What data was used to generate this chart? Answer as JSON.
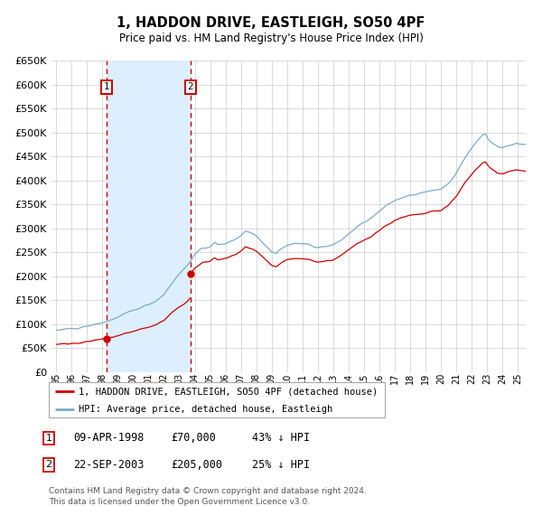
{
  "title": "1, HADDON DRIVE, EASTLEIGH, SO50 4PF",
  "subtitle": "Price paid vs. HM Land Registry's House Price Index (HPI)",
  "ylim": [
    0,
    650000
  ],
  "yticks": [
    0,
    50000,
    100000,
    150000,
    200000,
    250000,
    300000,
    350000,
    400000,
    450000,
    500000,
    550000,
    600000,
    650000
  ],
  "xlim_start": 1994.7,
  "xlim_end": 2025.5,
  "sale1_x": 1998.27,
  "sale1_y": 70000,
  "sale2_x": 2003.72,
  "sale2_y": 205000,
  "sale1_label": "09-APR-1998",
  "sale2_label": "22-SEP-2003",
  "sale1_price": "£70,000",
  "sale2_price": "£205,000",
  "sale1_hpi": "43% ↓ HPI",
  "sale2_hpi": "25% ↓ HPI",
  "legend_line1": "1, HADDON DRIVE, EASTLEIGH, SO50 4PF (detached house)",
  "legend_line2": "HPI: Average price, detached house, Eastleigh",
  "footnote": "Contains HM Land Registry data © Crown copyright and database right 2024.\nThis data is licensed under the Open Government Licence v3.0.",
  "red_color": "#cc0000",
  "blue_color": "#7aaccc",
  "shade_color": "#ddeeff",
  "grid_color": "#cccccc",
  "bg_color": "#ffffff"
}
